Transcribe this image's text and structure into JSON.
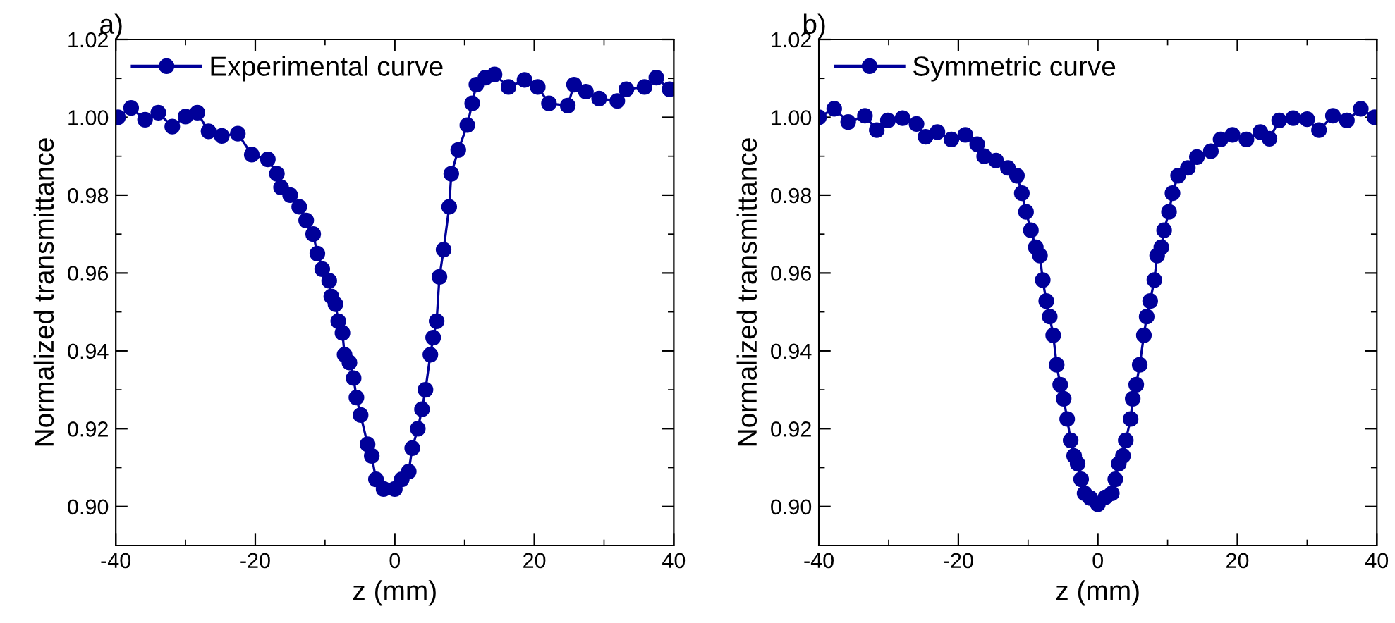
{
  "chart_data": [
    {
      "type": "line",
      "title": "a)",
      "xlabel": "z (mm)",
      "ylabel": "Normalized transmittance",
      "legend": "top left",
      "marker": "circle",
      "line_style": "solid",
      "grid": false,
      "xlim": [
        -40,
        40
      ],
      "xticks": [
        -40,
        -20,
        0,
        20,
        40
      ],
      "ylim": [
        0.89,
        1.02
      ],
      "yticks": [
        {
          "value": 0.9,
          "label": "0.90"
        },
        {
          "value": 0.92,
          "label": "0.92"
        },
        {
          "value": 0.94,
          "label": "0.94"
        },
        {
          "value": 0.96,
          "label": "0.96"
        },
        {
          "value": 0.98,
          "label": "0.98"
        },
        {
          "value": 1.0,
          "label": "1.00"
        },
        {
          "value": 1.02,
          "label": "1.02"
        }
      ],
      "series": [
        {
          "name": "Experimental curve",
          "color": "#000099",
          "x": [
            -39.7,
            -37.8,
            -35.8,
            -33.9,
            -31.9,
            -30.0,
            -28.3,
            -26.7,
            -24.8,
            -22.5,
            -20.5,
            -18.2,
            -16.9,
            -16.3,
            -15.0,
            -13.7,
            -12.7,
            -11.7,
            -11.1,
            -10.4,
            -9.4,
            -9.1,
            -8.5,
            -8.1,
            -7.5,
            -7.2,
            -6.5,
            -5.9,
            -5.5,
            -4.9,
            -3.9,
            -3.3,
            -2.7,
            -1.6,
            0.0,
            1.0,
            2.0,
            2.5,
            3.3,
            3.9,
            4.4,
            5.1,
            5.5,
            6.0,
            6.4,
            7.0,
            7.8,
            8.1,
            9.1,
            10.4,
            11.1,
            11.7,
            13.0,
            14.3,
            16.3,
            18.6,
            20.5,
            22.1,
            24.8,
            25.7,
            27.4,
            29.3,
            31.9,
            33.2,
            35.8,
            37.5,
            39.4
          ],
          "values": [
            1.0,
            1.0024,
            0.9994,
            1.0012,
            0.9976,
            1.0002,
            1.0012,
            0.9964,
            0.9952,
            0.9958,
            0.9904,
            0.9892,
            0.9855,
            0.982,
            0.98,
            0.977,
            0.9735,
            0.97,
            0.965,
            0.961,
            0.958,
            0.954,
            0.952,
            0.9476,
            0.9446,
            0.939,
            0.937,
            0.933,
            0.928,
            0.9235,
            0.916,
            0.913,
            0.907,
            0.9045,
            0.9045,
            0.907,
            0.909,
            0.915,
            0.92,
            0.925,
            0.93,
            0.939,
            0.9434,
            0.9476,
            0.959,
            0.966,
            0.977,
            0.9855,
            0.9916,
            0.998,
            1.0036,
            1.0084,
            1.0102,
            1.011,
            1.0078,
            1.0096,
            1.0078,
            1.0036,
            1.003,
            1.0084,
            1.0066,
            1.0048,
            1.0042,
            1.0072,
            1.0078,
            1.0102,
            1.0072
          ]
        }
      ]
    },
    {
      "type": "line",
      "title": "b)",
      "xlabel": "z (mm)",
      "ylabel": "Normalized transmittance",
      "legend": "top left",
      "marker": "circle",
      "line_style": "solid",
      "grid": false,
      "xlim": [
        -40,
        40
      ],
      "xticks": [
        -40,
        -20,
        0,
        20,
        40
      ],
      "ylim": [
        0.89,
        1.02
      ],
      "yticks": [
        {
          "value": 0.9,
          "label": "0.90"
        },
        {
          "value": 0.92,
          "label": "0.92"
        },
        {
          "value": 0.94,
          "label": "0.94"
        },
        {
          "value": 0.96,
          "label": "0.96"
        },
        {
          "value": 0.98,
          "label": "0.98"
        },
        {
          "value": 1.0,
          "label": "1.00"
        },
        {
          "value": 1.02,
          "label": "1.02"
        }
      ],
      "series": [
        {
          "name": "Symmetric curve",
          "color": "#000099",
          "x": [
            -40.0,
            -37.8,
            -35.8,
            -33.4,
            -31.7,
            -30.1,
            -28.0,
            -26.0,
            -24.7,
            -23.0,
            -21.0,
            -19.0,
            -17.3,
            -16.3,
            -14.6,
            -12.9,
            -11.6,
            -10.9,
            -10.3,
            -9.6,
            -8.9,
            -8.3,
            -7.9,
            -7.4,
            -6.9,
            -6.4,
            -5.9,
            -5.4,
            -4.9,
            -4.4,
            -3.9,
            -3.4,
            -2.9,
            -2.4,
            -1.9,
            -1.1,
            0.0,
            1.1,
            2.0,
            2.5,
            3.0,
            3.6,
            4.0,
            4.7,
            5.0,
            5.5,
            6.0,
            6.6,
            7.0,
            7.5,
            8.1,
            8.5,
            9.1,
            9.5,
            10.2,
            10.7,
            11.5,
            12.9,
            14.2,
            16.2,
            17.6,
            19.3,
            21.3,
            23.3,
            24.6,
            26.0,
            28.0,
            30.0,
            31.7,
            33.7,
            35.7,
            37.7,
            39.7
          ],
          "values": [
            1.0,
            1.0022,
            0.9988,
            1.0004,
            0.9967,
            0.9992,
            0.9998,
            0.9983,
            0.995,
            0.9962,
            0.9943,
            0.9955,
            0.9931,
            0.99,
            0.9889,
            0.987,
            0.985,
            0.9805,
            0.9757,
            0.971,
            0.9666,
            0.9645,
            0.9582,
            0.9528,
            0.9488,
            0.944,
            0.9364,
            0.9313,
            0.9277,
            0.9225,
            0.917,
            0.913,
            0.911,
            0.907,
            0.9034,
            0.9022,
            0.9006,
            0.9024,
            0.9034,
            0.907,
            0.911,
            0.913,
            0.917,
            0.9225,
            0.9277,
            0.9313,
            0.9364,
            0.944,
            0.9488,
            0.9528,
            0.9582,
            0.9645,
            0.9666,
            0.971,
            0.9757,
            0.9805,
            0.985,
            0.987,
            0.9898,
            0.9913,
            0.9943,
            0.9955,
            0.9943,
            0.9962,
            0.9945,
            0.9992,
            0.9998,
            0.9995,
            0.9967,
            1.0004,
            0.9992,
            1.0022,
            1.0
          ]
        }
      ]
    }
  ]
}
